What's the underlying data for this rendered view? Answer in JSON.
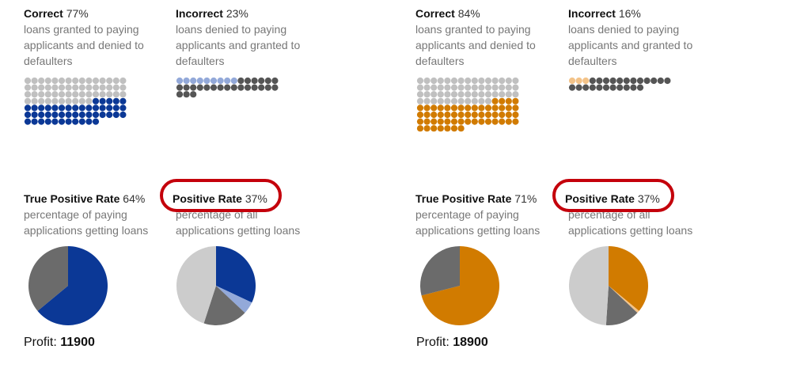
{
  "colors": {
    "blue": "#0b3896",
    "lightblue": "#93a9d9",
    "orange": "#d17b00",
    "lightorange": "#f3c389",
    "darkgray": "#555555",
    "gray": "#c0c0c0",
    "pie_dark": "#6b6b6b",
    "pie_light": "#cccccc",
    "ring": "#c4000b"
  },
  "panels": [
    {
      "correct": {
        "label": "Correct",
        "value": "77%",
        "desc": "loans granted to paying applicants and denied to defaulters"
      },
      "incorrect": {
        "label": "Incorrect",
        "value": "23%",
        "desc": "loans denied to paying applicants and granted to defaulters"
      },
      "tpr": {
        "label": "True Positive Rate",
        "value": "64%",
        "desc": "percentage of paying applications getting loans"
      },
      "pr": {
        "label": "Positive Rate",
        "value": "37%",
        "desc": "percentage of all applications getting loans"
      },
      "profit": {
        "label": "Profit:",
        "value": "11900"
      }
    },
    {
      "correct": {
        "label": "Correct",
        "value": "84%",
        "desc": "loans granted to paying applicants and denied to defaulters"
      },
      "incorrect": {
        "label": "Incorrect",
        "value": "16%",
        "desc": "loans denied to paying applicants and granted to defaulters"
      },
      "tpr": {
        "label": "True Positive Rate",
        "value": "71%",
        "desc": "percentage of paying applications getting loans"
      },
      "pr": {
        "label": "Positive Rate",
        "value": "37%",
        "desc": "percentage of all applications getting loans"
      },
      "profit": {
        "label": "Profit:",
        "value": "18900"
      }
    }
  ],
  "chart_data": [
    {
      "type": "waffle",
      "name": "Correct",
      "series": [
        {
          "category": "denied defaulters",
          "count": 55,
          "color": "gray"
        },
        {
          "category": "granted paying",
          "count": 46,
          "color": "blue"
        }
      ]
    },
    {
      "type": "waffle",
      "name": "Incorrect",
      "series": [
        {
          "category": "granted defaulters",
          "count": 9,
          "color": "lightblue"
        },
        {
          "category": "denied paying",
          "count": 24,
          "color": "darkgray"
        }
      ]
    },
    {
      "type": "pie",
      "name": "True Positive Rate",
      "slices": [
        {
          "category": "paying getting loans",
          "value": 64,
          "color": "blue"
        },
        {
          "category": "paying denied",
          "value": 36,
          "color": "pie_dark"
        }
      ]
    },
    {
      "type": "pie",
      "name": "Positive Rate",
      "slices": [
        {
          "category": "granted paying",
          "value": 32,
          "color": "blue"
        },
        {
          "category": "granted defaulters",
          "value": 5,
          "color": "lightblue"
        },
        {
          "category": "denied paying",
          "value": 18,
          "color": "pie_dark"
        },
        {
          "category": "denied defaulters",
          "value": 45,
          "color": "pie_light"
        }
      ]
    },
    {
      "type": "waffle",
      "name": "Correct",
      "series": [
        {
          "category": "denied defaulters",
          "count": 56,
          "color": "gray"
        },
        {
          "category": "granted paying",
          "count": 56,
          "color": "orange"
        }
      ]
    },
    {
      "type": "waffle",
      "name": "Incorrect",
      "series": [
        {
          "category": "granted defaulters",
          "count": 3,
          "color": "lightorange"
        },
        {
          "category": "denied paying",
          "count": 23,
          "color": "darkgray"
        }
      ]
    },
    {
      "type": "pie",
      "name": "True Positive Rate",
      "slices": [
        {
          "category": "paying getting loans",
          "value": 71,
          "color": "orange"
        },
        {
          "category": "paying denied",
          "value": 29,
          "color": "pie_dark"
        }
      ]
    },
    {
      "type": "pie",
      "name": "Positive Rate",
      "slices": [
        {
          "category": "granted paying",
          "value": 36,
          "color": "orange"
        },
        {
          "category": "granted defaulters",
          "value": 1,
          "color": "lightorange"
        },
        {
          "category": "denied paying",
          "value": 14,
          "color": "pie_dark"
        },
        {
          "category": "denied defaulters",
          "value": 49,
          "color": "pie_light"
        }
      ]
    }
  ]
}
